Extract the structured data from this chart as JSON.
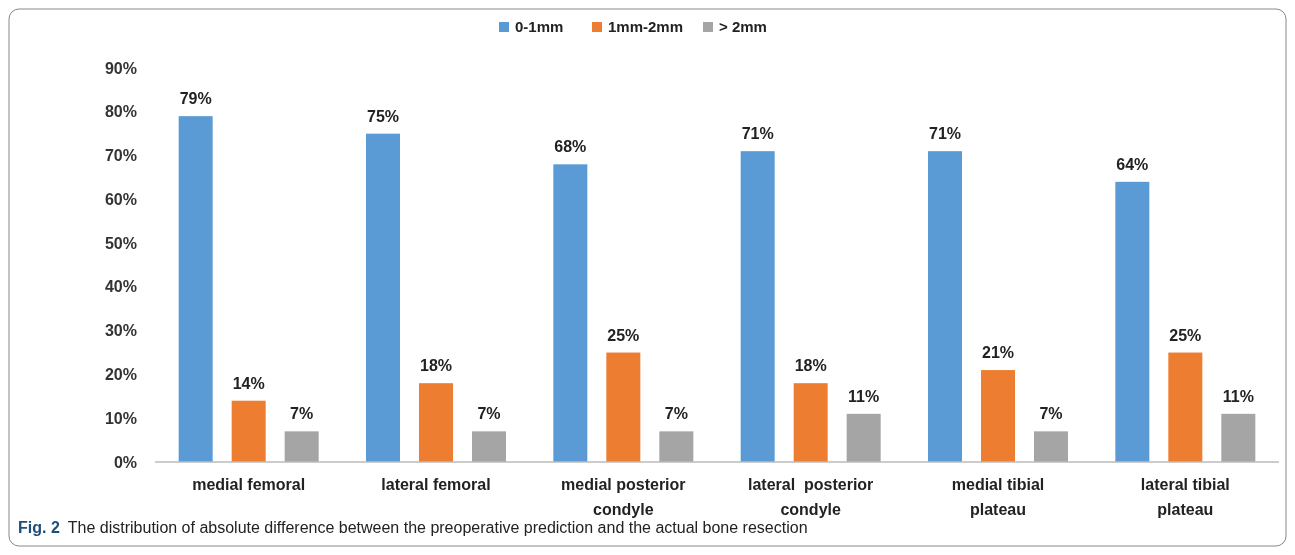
{
  "chart_data": {
    "type": "bar",
    "categories": [
      "medial femoral",
      "lateral femoral",
      "medial posterior condyle",
      "lateral  posterior condyle",
      "medial tibial plateau",
      "lateral tibial plateau"
    ],
    "series": [
      {
        "name": "0-1mm",
        "color": "#5b9bd5",
        "values": [
          79,
          75,
          68,
          71,
          71,
          64
        ],
        "value_labels": [
          "79%",
          "75%",
          "68%",
          "71%",
          "71%",
          "64%"
        ]
      },
      {
        "name": "1mm-2mm",
        "color": "#ed7d31",
        "values": [
          14,
          18,
          25,
          18,
          21,
          25
        ],
        "value_labels": [
          "14%",
          "18%",
          "25%",
          "18%",
          "21%",
          "25%"
        ]
      },
      {
        "name": "> 2mm",
        "color": "#a5a5a5",
        "values": [
          7,
          7,
          7,
          11,
          7,
          11
        ],
        "value_labels": [
          "7%",
          "7%",
          "7%",
          "11%",
          "7%",
          "11%"
        ]
      }
    ],
    "ylim": [
      0,
      90
    ],
    "yticks": [
      {
        "value": 0,
        "label": "0%"
      },
      {
        "value": 10,
        "label": "10%"
      },
      {
        "value": 20,
        "label": "20%"
      },
      {
        "value": 30,
        "label": "30%"
      },
      {
        "value": 40,
        "label": "40%"
      },
      {
        "value": 50,
        "label": "50%"
      },
      {
        "value": 60,
        "label": "60%"
      },
      {
        "value": 70,
        "label": "70%"
      },
      {
        "value": 80,
        "label": "80%"
      },
      {
        "value": 90,
        "label": "90%"
      }
    ],
    "grid": false,
    "legend": "top",
    "annotations": [
      "Fig. 2 The distribution of absolute difference between the preoperative prediction and the actual bone resection"
    ]
  }
}
